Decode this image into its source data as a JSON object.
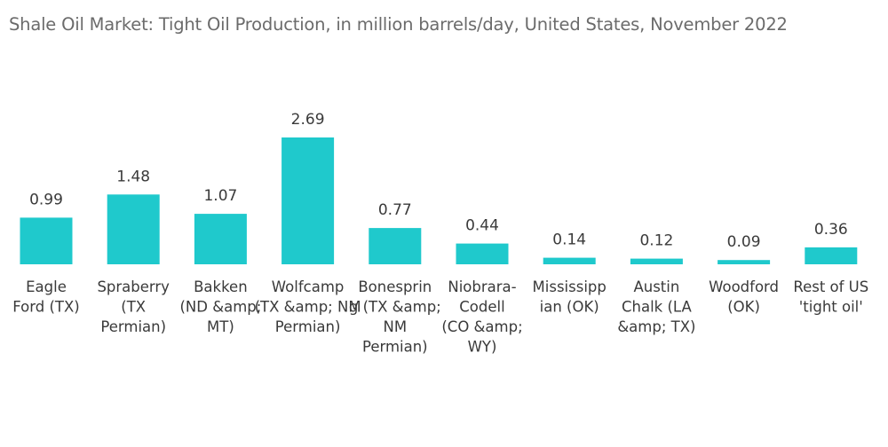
{
  "chart_data": {
    "type": "bar",
    "title": "Shale Oil Market: Tight Oil Production, in million barrels/day, United States, November 2022",
    "categories": [
      [
        "Eagle",
        "Ford (TX)"
      ],
      [
        "Spraberry",
        "(TX",
        "Permian)"
      ],
      [
        "Bakken",
        "(ND &amp;",
        "MT)"
      ],
      [
        "Wolfcamp",
        "(TX &amp; NM",
        "Permian)"
      ],
      [
        "Bonesprin",
        "g (TX &amp;",
        "NM",
        "Permian)"
      ],
      [
        "Niobrara-",
        "Codell",
        "(CO &amp;",
        "WY)"
      ],
      [
        "Mississipp",
        "ian (OK)"
      ],
      [
        "Austin",
        "Chalk (LA",
        "&amp; TX)"
      ],
      [
        "Woodford",
        "(OK)"
      ],
      [
        "Rest of US",
        "'tight oil'"
      ]
    ],
    "values": [
      0.99,
      1.48,
      1.07,
      2.69,
      0.77,
      0.44,
      0.14,
      0.12,
      0.09,
      0.36
    ],
    "value_labels": [
      "0.99",
      "1.48",
      "1.07",
      "2.69",
      "0.77",
      "0.44",
      "0.14",
      "0.12",
      "0.09",
      "0.36"
    ],
    "bar_color": "#1fc9cc",
    "xlabel": "",
    "ylabel": "",
    "grid": false,
    "legend": "none"
  }
}
